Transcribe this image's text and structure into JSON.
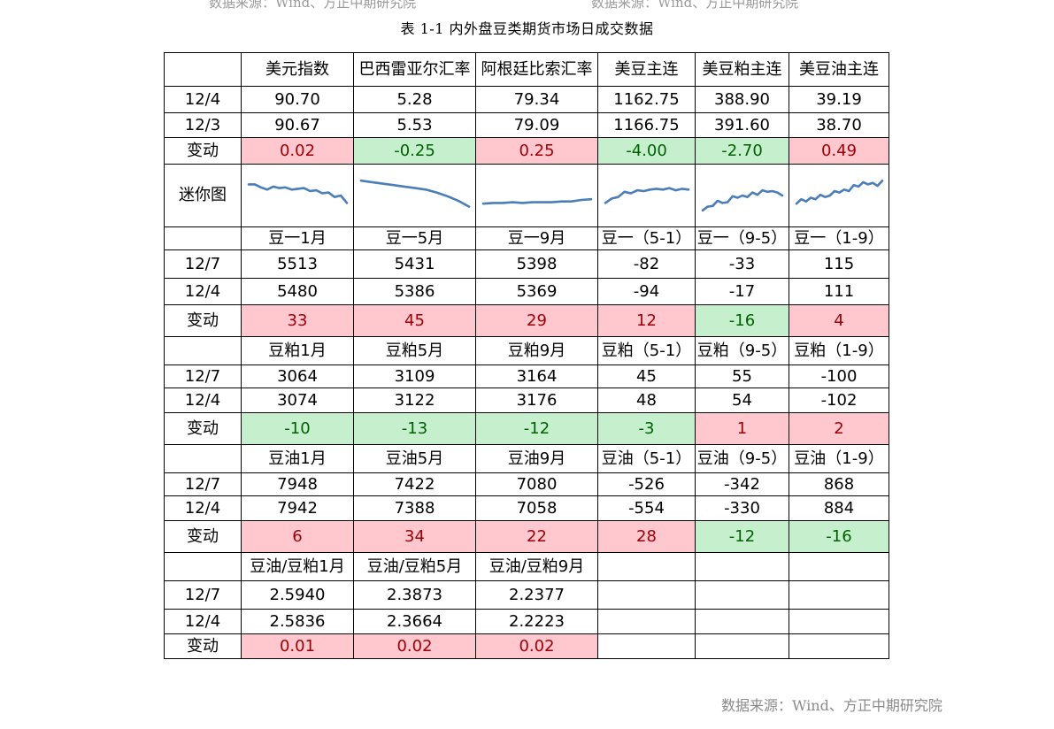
{
  "source_top": [
    "数据来源：Wind、方正中期研究院",
    "数据来源：Wind、方正中期研究院"
  ],
  "title": "表 1-1  内外盘豆类期货市场日成交数据",
  "source_bottom": "数据来源：Wind、方正中期研究院",
  "colors": {
    "increase_bg": "#ffc7ce",
    "increase_text": "#9c0006",
    "decrease_bg": "#c6efce",
    "decrease_text": "#006100",
    "sparkline": "#4a7ebb"
  },
  "sections": [
    {
      "headers": [
        "美元指数",
        "巴西雷亚尔汇率",
        "阿根廷比索汇率",
        "美豆主连",
        "美豆粕主连",
        "美豆油主连"
      ],
      "rows": [
        {
          "label": "12/4",
          "values": [
            "90.70",
            "5.28",
            "79.34",
            "1162.75",
            "388.90",
            "39.19"
          ]
        },
        {
          "label": "12/3",
          "values": [
            "90.67",
            "5.53",
            "79.09",
            "1166.75",
            "391.60",
            "38.70"
          ]
        }
      ],
      "change": {
        "label": "变动",
        "values": [
          "0.02",
          "-0.25",
          "0.25",
          "-4.00",
          "-2.70",
          "0.49"
        ],
        "direction": [
          "up",
          "down",
          "up",
          "down",
          "down",
          "up"
        ]
      },
      "mini_chart": {
        "label": "迷你图",
        "series": [
          [
            0.8,
            0.8,
            0.72,
            0.66,
            0.74,
            0.7,
            0.72,
            0.66,
            0.68,
            0.7,
            0.62,
            0.64,
            0.56,
            0.58,
            0.46,
            0.5,
            0.3
          ],
          [
            0.9,
            0.86,
            0.82,
            0.78,
            0.74,
            0.7,
            0.66,
            0.58,
            0.48,
            0.36,
            0.2
          ],
          [
            0.28,
            0.3,
            0.3,
            0.32,
            0.3,
            0.32,
            0.32,
            0.32,
            0.34,
            0.34,
            0.38,
            0.4
          ],
          [
            0.3,
            0.42,
            0.46,
            0.6,
            0.56,
            0.64,
            0.62,
            0.66,
            0.68,
            0.66,
            0.7,
            0.64,
            0.68,
            0.66
          ],
          [
            0.1,
            0.2,
            0.22,
            0.36,
            0.3,
            0.32,
            0.48,
            0.44,
            0.5,
            0.46,
            0.58,
            0.52,
            0.64,
            0.6,
            0.62,
            0.58,
            0.5
          ],
          [
            0.28,
            0.4,
            0.34,
            0.44,
            0.4,
            0.52,
            0.46,
            0.5,
            0.62,
            0.58,
            0.66,
            0.62,
            0.78,
            0.74,
            0.86,
            0.8,
            0.84,
            0.76,
            0.9
          ]
        ]
      }
    },
    {
      "headers": [
        "豆一1月",
        "豆一5月",
        "豆一9月",
        "豆一（5-1）",
        "豆一（9-5）",
        "豆一（1-9）"
      ],
      "rows": [
        {
          "label": "12/7",
          "values": [
            "5513",
            "5431",
            "5398",
            "-82",
            "-33",
            "115"
          ]
        },
        {
          "label": "12/4",
          "values": [
            "5480",
            "5386",
            "5369",
            "-94",
            "-17",
            "111"
          ]
        }
      ],
      "change": {
        "label": "变动",
        "values": [
          "33",
          "45",
          "29",
          "12",
          "-16",
          "4"
        ],
        "direction": [
          "up",
          "up",
          "up",
          "up",
          "down",
          "up"
        ]
      }
    },
    {
      "headers": [
        "豆粕1月",
        "豆粕5月",
        "豆粕9月",
        "豆粕（5-1）",
        "豆粕（9-5）",
        "豆粕（1-9）"
      ],
      "rows": [
        {
          "label": "12/7",
          "values": [
            "3064",
            "3109",
            "3164",
            "45",
            "55",
            "-100"
          ]
        },
        {
          "label": "12/4",
          "values": [
            "3074",
            "3122",
            "3176",
            "48",
            "54",
            "-102"
          ]
        }
      ],
      "change": {
        "label": "变动",
        "values": [
          "-10",
          "-13",
          "-12",
          "-3",
          "1",
          "2"
        ],
        "direction": [
          "down",
          "down",
          "down",
          "down",
          "up",
          "up"
        ]
      }
    },
    {
      "headers": [
        "豆油1月",
        "豆油5月",
        "豆油9月",
        "豆油（5-1）",
        "豆油（9-5）",
        "豆油（1-9）"
      ],
      "rows": [
        {
          "label": "12/7",
          "values": [
            "7948",
            "7422",
            "7080",
            "-526",
            "-342",
            "868"
          ]
        },
        {
          "label": "12/4",
          "values": [
            "7942",
            "7388",
            "7058",
            "-554",
            "-330",
            "884"
          ]
        }
      ],
      "change": {
        "label": "变动",
        "values": [
          "6",
          "34",
          "22",
          "28",
          "-12",
          "-16"
        ],
        "direction": [
          "up",
          "up",
          "up",
          "up",
          "down",
          "down"
        ]
      }
    },
    {
      "headers": [
        "豆油/豆粕1月",
        "豆油/豆粕5月",
        "豆油/豆粕9月",
        "",
        "",
        ""
      ],
      "rows": [
        {
          "label": "12/7",
          "values": [
            "2.5940",
            "2.3873",
            "2.2377",
            "",
            "",
            ""
          ]
        },
        {
          "label": "12/4",
          "values": [
            "2.5836",
            "2.3664",
            "2.2223",
            "",
            "",
            ""
          ]
        }
      ],
      "change": {
        "label": "变动",
        "values": [
          "0.01",
          "0.02",
          "0.02",
          "",
          "",
          ""
        ],
        "direction": [
          "up",
          "up",
          "up",
          "none",
          "none",
          "none"
        ]
      }
    }
  ]
}
